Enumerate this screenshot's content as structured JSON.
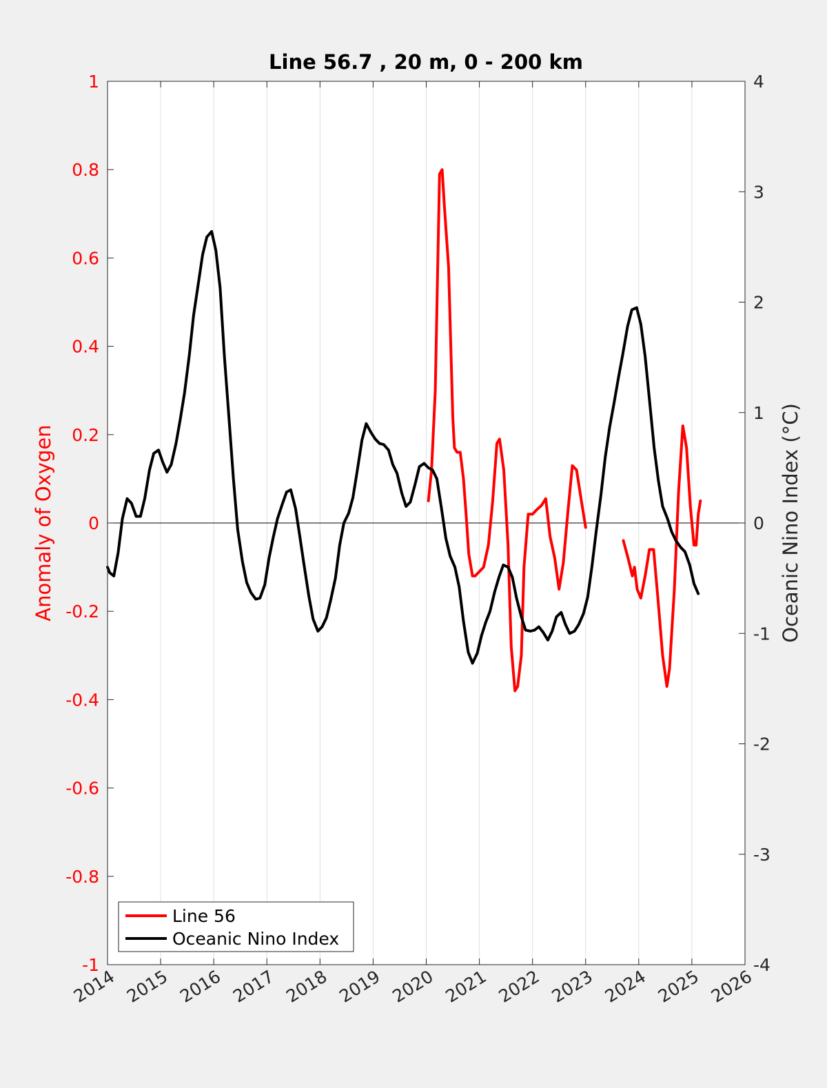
{
  "chart_data": {
    "type": "line",
    "title": "Line 56.7 , 20 m, 0 - 200 km",
    "xlabel": "",
    "ylabel": "Anomaly of Oxygen",
    "y2label": "Oceanic Nino Index (°C)",
    "xlim": [
      2014,
      2026
    ],
    "ylim": [
      -1,
      1
    ],
    "y2lim": [
      -4,
      4
    ],
    "x_ticks": [
      "2014",
      "2015",
      "2016",
      "2017",
      "2018",
      "2019",
      "2020",
      "2021",
      "2022",
      "2023",
      "2024",
      "2025",
      "2026"
    ],
    "y_ticks": [
      "-1",
      "-0.8",
      "-0.6",
      "-0.4",
      "-0.2",
      "0",
      "0.2",
      "0.4",
      "0.6",
      "0.8",
      "1"
    ],
    "y2_ticks": [
      "-4",
      "-3",
      "-2",
      "-1",
      "0",
      "1",
      "2",
      "3",
      "4"
    ],
    "grid": "vertical",
    "zero_line": true,
    "legend_position": "bottom-left",
    "colors": {
      "line56": "#ff0000",
      "oni": "#000000",
      "left_axis": "#ff0000",
      "right_axis": "#262626"
    },
    "series": [
      {
        "name": "Line 56",
        "axis": "left",
        "segments": [
          [
            [
              2020.04,
              0.05
            ],
            [
              2020.1,
              0.12
            ],
            [
              2020.17,
              0.3
            ],
            [
              2020.25,
              0.79
            ],
            [
              2020.3,
              0.8
            ],
            [
              2020.34,
              0.72
            ],
            [
              2020.42,
              0.58
            ],
            [
              2020.5,
              0.24
            ],
            [
              2020.53,
              0.17
            ],
            [
              2020.58,
              0.16
            ],
            [
              2020.64,
              0.16
            ],
            [
              2020.7,
              0.1
            ],
            [
              2020.75,
              0.02
            ],
            [
              2020.8,
              -0.07
            ],
            [
              2020.87,
              -0.12
            ],
            [
              2020.92,
              -0.12
            ],
            [
              2021.0,
              -0.11
            ],
            [
              2021.08,
              -0.1
            ],
            [
              2021.17,
              -0.05
            ],
            [
              2021.25,
              0.05
            ],
            [
              2021.33,
              0.18
            ],
            [
              2021.38,
              0.19
            ],
            [
              2021.46,
              0.12
            ],
            [
              2021.54,
              -0.05
            ],
            [
              2021.6,
              -0.28
            ],
            [
              2021.67,
              -0.38
            ],
            [
              2021.72,
              -0.37
            ],
            [
              2021.79,
              -0.3
            ],
            [
              2021.84,
              -0.1
            ],
            [
              2021.92,
              0.02
            ],
            [
              2022.0,
              0.02
            ],
            [
              2022.08,
              0.03
            ],
            [
              2022.17,
              0.04
            ],
            [
              2022.25,
              0.055
            ],
            [
              2022.33,
              -0.03
            ],
            [
              2022.42,
              -0.08
            ],
            [
              2022.5,
              -0.15
            ],
            [
              2022.58,
              -0.09
            ],
            [
              2022.67,
              0.03
            ],
            [
              2022.75,
              0.13
            ],
            [
              2022.83,
              0.12
            ],
            [
              2022.92,
              0.05
            ],
            [
              2023.0,
              -0.01
            ]
          ],
          [
            [
              2023.71,
              -0.04
            ],
            [
              2023.8,
              -0.08
            ],
            [
              2023.88,
              -0.12
            ],
            [
              2023.92,
              -0.1
            ],
            [
              2023.97,
              -0.15
            ],
            [
              2024.04,
              -0.17
            ],
            [
              2024.12,
              -0.12
            ],
            [
              2024.2,
              -0.06
            ],
            [
              2024.28,
              -0.06
            ],
            [
              2024.36,
              -0.17
            ],
            [
              2024.45,
              -0.3
            ],
            [
              2024.53,
              -0.37
            ],
            [
              2024.58,
              -0.33
            ],
            [
              2024.67,
              -0.15
            ],
            [
              2024.75,
              0.07
            ],
            [
              2024.83,
              0.22
            ],
            [
              2024.9,
              0.17
            ],
            [
              2024.97,
              0.04
            ],
            [
              2025.04,
              -0.05
            ],
            [
              2025.08,
              -0.05
            ],
            [
              2025.12,
              0.02
            ],
            [
              2025.16,
              0.05
            ]
          ]
        ]
      },
      {
        "name": "Oceanic Nino Index",
        "axis": "right",
        "segments": [
          [
            [
              2014.0,
              -0.4
            ],
            [
              2014.04,
              -0.45
            ],
            [
              2014.12,
              -0.48
            ],
            [
              2014.2,
              -0.27
            ],
            [
              2014.28,
              0.04
            ],
            [
              2014.37,
              0.22
            ],
            [
              2014.45,
              0.18
            ],
            [
              2014.54,
              0.06
            ],
            [
              2014.62,
              0.06
            ],
            [
              2014.7,
              0.22
            ],
            [
              2014.79,
              0.48
            ],
            [
              2014.87,
              0.63
            ],
            [
              2014.96,
              0.66
            ],
            [
              2015.04,
              0.55
            ],
            [
              2015.12,
              0.46
            ],
            [
              2015.2,
              0.53
            ],
            [
              2015.29,
              0.72
            ],
            [
              2015.37,
              0.94
            ],
            [
              2015.45,
              1.18
            ],
            [
              2015.54,
              1.52
            ],
            [
              2015.62,
              1.88
            ],
            [
              2015.71,
              2.17
            ],
            [
              2015.79,
              2.43
            ],
            [
              2015.87,
              2.59
            ],
            [
              2015.96,
              2.64
            ],
            [
              2016.04,
              2.47
            ],
            [
              2016.12,
              2.13
            ],
            [
              2016.2,
              1.51
            ],
            [
              2016.29,
              0.93
            ],
            [
              2016.37,
              0.4
            ],
            [
              2016.45,
              -0.06
            ],
            [
              2016.54,
              -0.35
            ],
            [
              2016.62,
              -0.54
            ],
            [
              2016.7,
              -0.63
            ],
            [
              2016.79,
              -0.69
            ],
            [
              2016.87,
              -0.68
            ],
            [
              2016.96,
              -0.56
            ],
            [
              2017.04,
              -0.32
            ],
            [
              2017.12,
              -0.13
            ],
            [
              2017.2,
              0.04
            ],
            [
              2017.29,
              0.17
            ],
            [
              2017.37,
              0.28
            ],
            [
              2017.45,
              0.3
            ],
            [
              2017.54,
              0.13
            ],
            [
              2017.62,
              -0.12
            ],
            [
              2017.7,
              -0.38
            ],
            [
              2017.79,
              -0.66
            ],
            [
              2017.87,
              -0.87
            ],
            [
              2017.96,
              -0.98
            ],
            [
              2018.04,
              -0.94
            ],
            [
              2018.12,
              -0.86
            ],
            [
              2018.2,
              -0.7
            ],
            [
              2018.29,
              -0.5
            ],
            [
              2018.37,
              -0.2
            ],
            [
              2018.45,
              0.0
            ],
            [
              2018.54,
              0.09
            ],
            [
              2018.62,
              0.23
            ],
            [
              2018.7,
              0.47
            ],
            [
              2018.79,
              0.75
            ],
            [
              2018.87,
              0.9
            ],
            [
              2018.96,
              0.82
            ],
            [
              2019.04,
              0.76
            ],
            [
              2019.12,
              0.72
            ],
            [
              2019.2,
              0.71
            ],
            [
              2019.29,
              0.66
            ],
            [
              2019.37,
              0.53
            ],
            [
              2019.45,
              0.45
            ],
            [
              2019.54,
              0.27
            ],
            [
              2019.62,
              0.15
            ],
            [
              2019.7,
              0.19
            ],
            [
              2019.79,
              0.35
            ],
            [
              2019.87,
              0.51
            ],
            [
              2019.96,
              0.54
            ],
            [
              2020.04,
              0.5
            ],
            [
              2020.12,
              0.48
            ],
            [
              2020.2,
              0.4
            ],
            [
              2020.29,
              0.12
            ],
            [
              2020.37,
              -0.14
            ],
            [
              2020.45,
              -0.3
            ],
            [
              2020.54,
              -0.4
            ],
            [
              2020.62,
              -0.58
            ],
            [
              2020.7,
              -0.89
            ],
            [
              2020.79,
              -1.17
            ],
            [
              2020.87,
              -1.27
            ],
            [
              2020.96,
              -1.18
            ],
            [
              2021.04,
              -1.02
            ],
            [
              2021.12,
              -0.9
            ],
            [
              2021.2,
              -0.8
            ],
            [
              2021.29,
              -0.62
            ],
            [
              2021.37,
              -0.49
            ],
            [
              2021.45,
              -0.38
            ],
            [
              2021.54,
              -0.4
            ],
            [
              2021.62,
              -0.49
            ],
            [
              2021.7,
              -0.68
            ],
            [
              2021.79,
              -0.85
            ],
            [
              2021.87,
              -0.97
            ],
            [
              2021.96,
              -0.98
            ],
            [
              2022.04,
              -0.97
            ],
            [
              2022.12,
              -0.94
            ],
            [
              2022.2,
              -0.99
            ],
            [
              2022.29,
              -1.06
            ],
            [
              2022.37,
              -0.98
            ],
            [
              2022.45,
              -0.85
            ],
            [
              2022.54,
              -0.81
            ],
            [
              2022.62,
              -0.92
            ],
            [
              2022.7,
              -1.0
            ],
            [
              2022.79,
              -0.98
            ],
            [
              2022.87,
              -0.92
            ],
            [
              2022.96,
              -0.82
            ],
            [
              2023.04,
              -0.67
            ],
            [
              2023.12,
              -0.39
            ],
            [
              2023.2,
              -0.07
            ],
            [
              2023.29,
              0.26
            ],
            [
              2023.37,
              0.6
            ],
            [
              2023.45,
              0.86
            ],
            [
              2023.54,
              1.1
            ],
            [
              2023.62,
              1.32
            ],
            [
              2023.7,
              1.53
            ],
            [
              2023.79,
              1.78
            ],
            [
              2023.87,
              1.93
            ],
            [
              2023.96,
              1.95
            ],
            [
              2024.04,
              1.8
            ],
            [
              2024.12,
              1.51
            ],
            [
              2024.2,
              1.12
            ],
            [
              2024.29,
              0.68
            ],
            [
              2024.37,
              0.38
            ],
            [
              2024.45,
              0.15
            ],
            [
              2024.54,
              0.04
            ],
            [
              2024.62,
              -0.08
            ],
            [
              2024.7,
              -0.16
            ],
            [
              2024.79,
              -0.22
            ],
            [
              2024.87,
              -0.26
            ],
            [
              2024.96,
              -0.38
            ],
            [
              2025.04,
              -0.55
            ],
            [
              2025.12,
              -0.64
            ]
          ]
        ]
      }
    ]
  }
}
